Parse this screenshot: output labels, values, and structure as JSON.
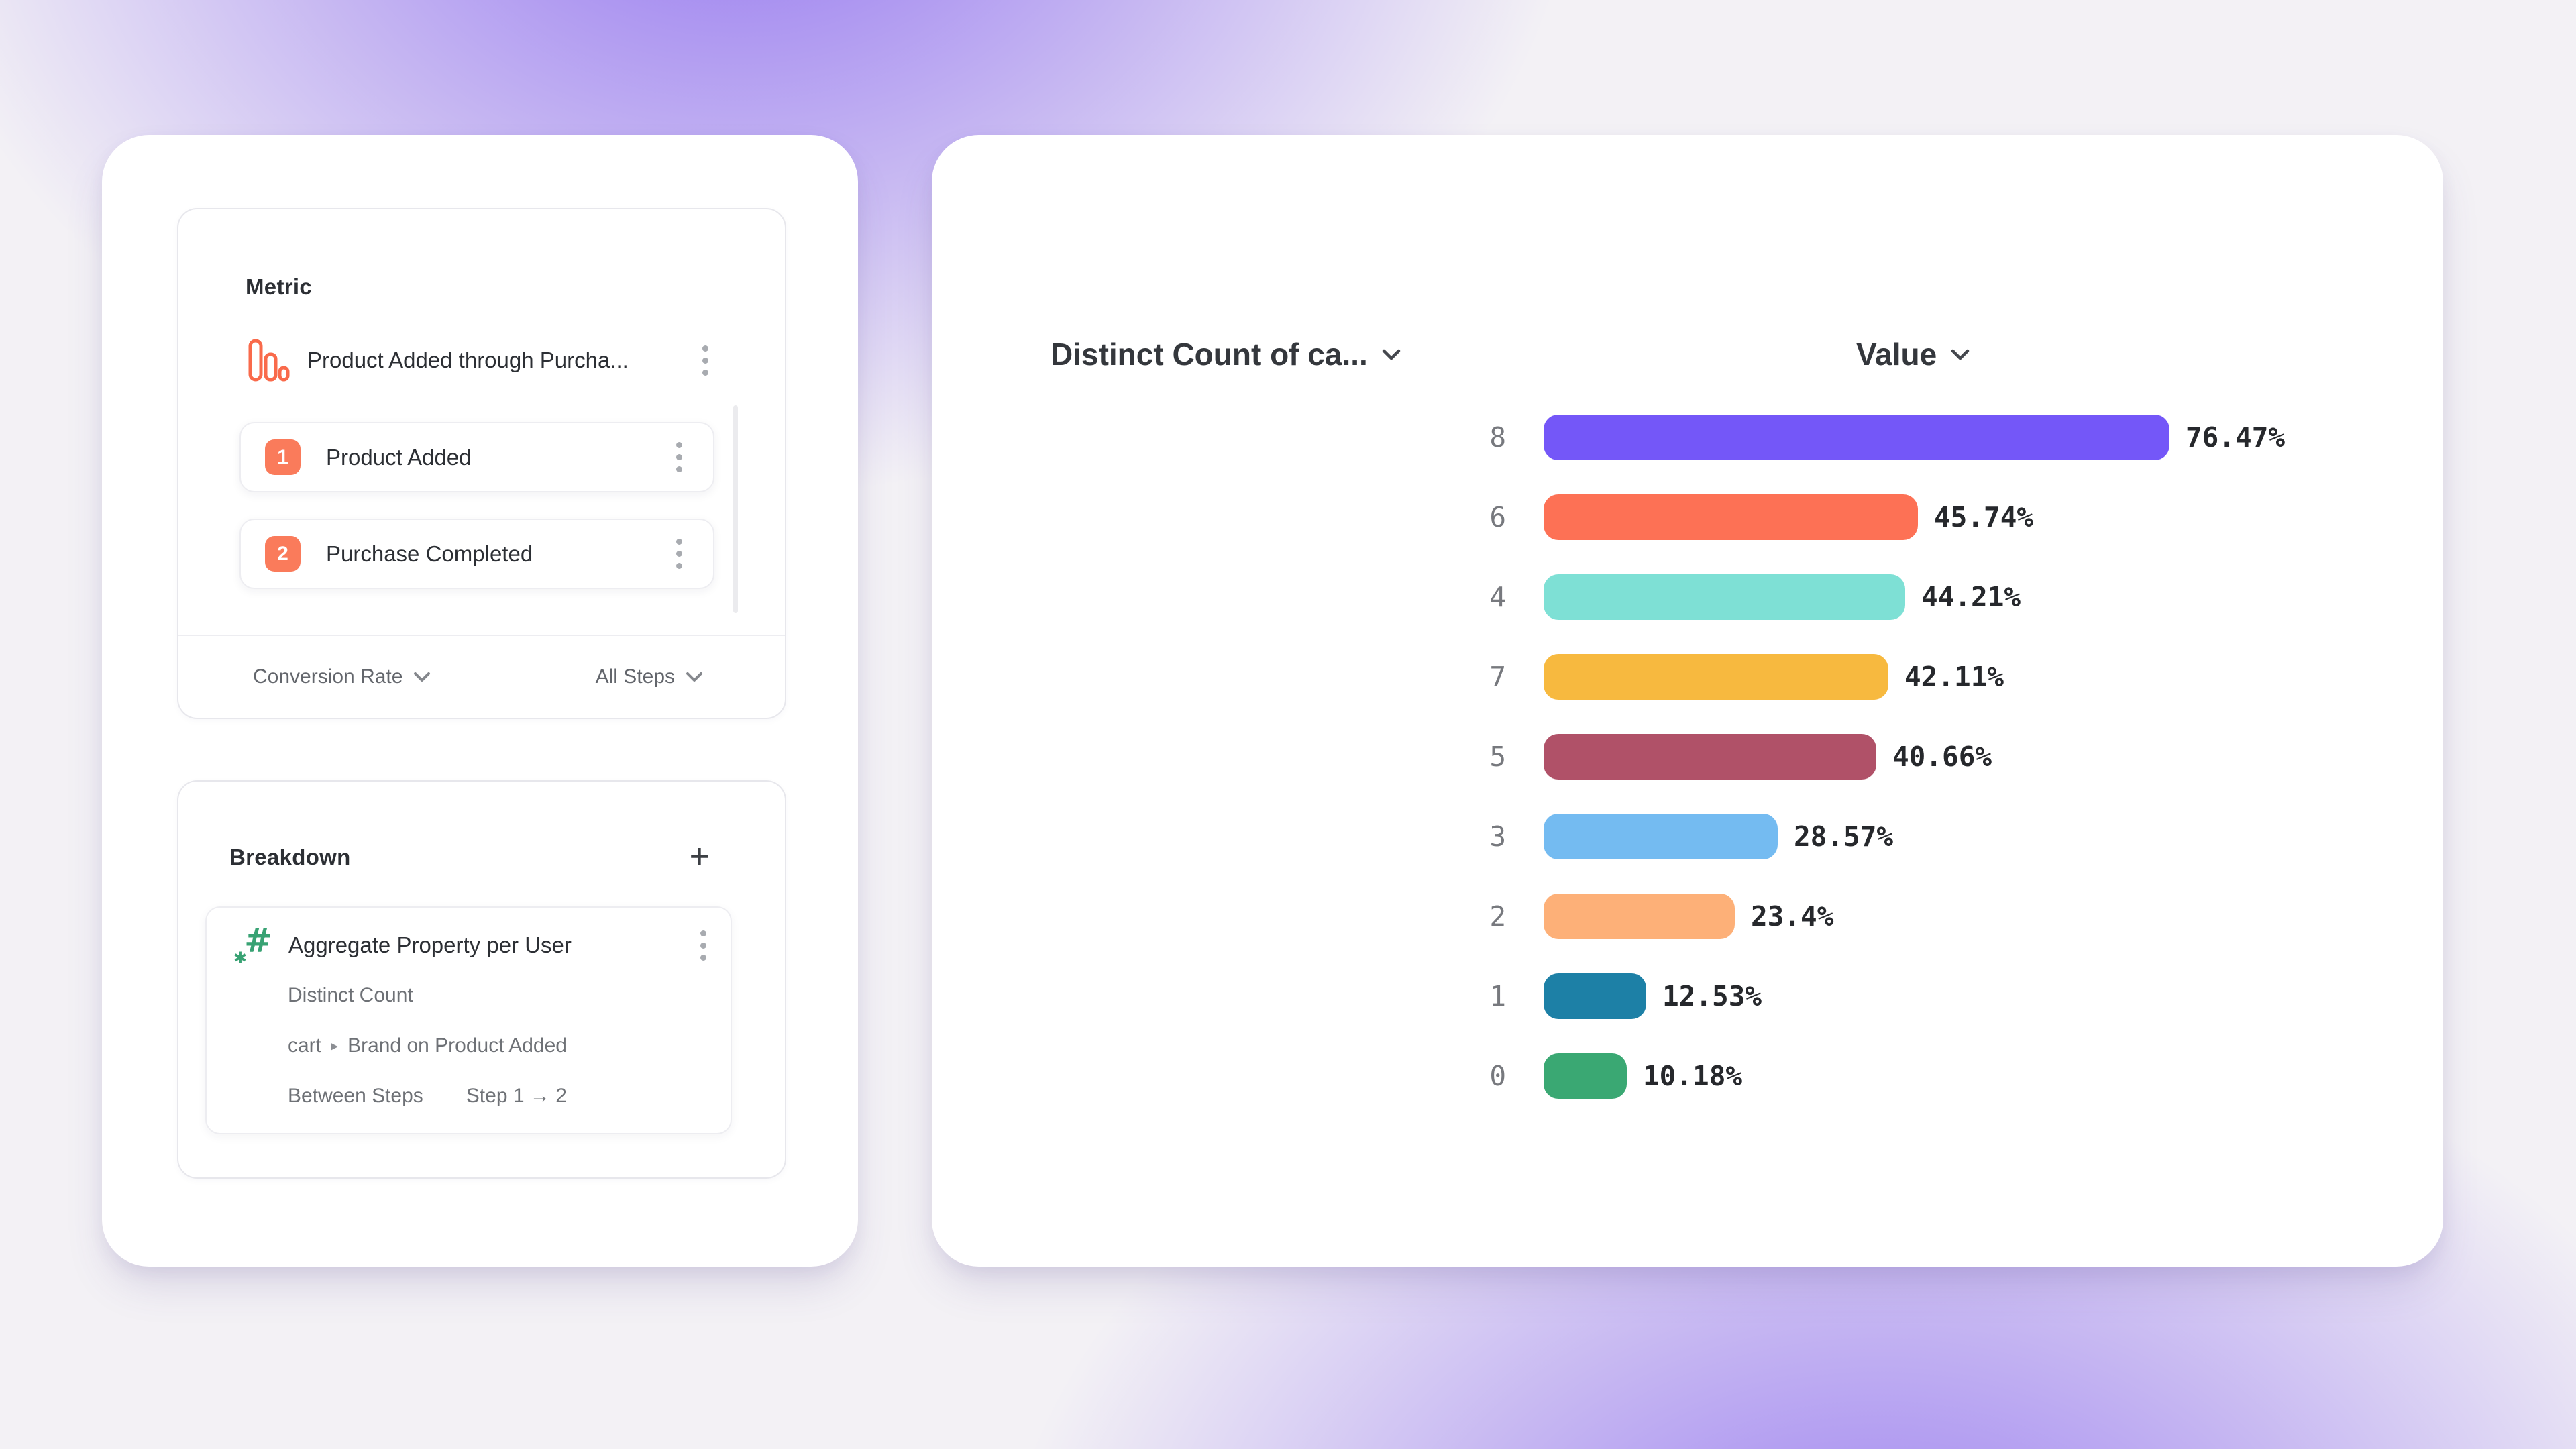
{
  "left_panel": {
    "metric": {
      "title": "Metric",
      "funnel_title": "Product Added through Purcha...",
      "steps": [
        {
          "number": "1",
          "label": "Product Added"
        },
        {
          "number": "2",
          "label": "Purchase Completed"
        }
      ],
      "footer_left": "Conversion Rate",
      "footer_right": "All Steps"
    },
    "breakdown": {
      "title": "Breakdown",
      "add_label": "+",
      "card_title": "Aggregate Property per User",
      "detail_measure": "Distinct Count",
      "property_event": "cart",
      "property_separator": "▸",
      "property_name": "Brand on Product Added",
      "between_steps_label": "Between Steps",
      "between_steps_value": "Step 1 → 2"
    }
  },
  "chart_data": {
    "type": "bar",
    "orientation": "horizontal",
    "title": "",
    "column_headers": {
      "category": "Distinct Count of ca...",
      "value": "Value"
    },
    "categories": [
      "8",
      "6",
      "4",
      "7",
      "5",
      "3",
      "2",
      "1",
      "0"
    ],
    "values": [
      76.47,
      45.74,
      44.21,
      42.11,
      40.66,
      28.57,
      23.4,
      12.53,
      10.18
    ],
    "value_labels": [
      "76.47%",
      "45.74%",
      "44.21%",
      "42.11%",
      "40.66%",
      "28.57%",
      "23.4%",
      "12.53%",
      "10.18%"
    ],
    "bar_colors": [
      "#7457f8",
      "#fd7155",
      "#7ee0d5",
      "#f7b93f",
      "#b05168",
      "#74bbf1",
      "#fdb078",
      "#1d80a6",
      "#3aa873"
    ],
    "xlim": [
      0,
      100
    ],
    "grid": false,
    "legend": false
  },
  "colors": {
    "accent_orange": "#fa7b5b",
    "icon_orange": "#f96a4b",
    "icon_green": "#38a273",
    "kebab_gray": "#a8abb0",
    "chevron_gray": "#85888d",
    "header_chevron": "#45484e",
    "value_text": "#26282c",
    "category_text": "#77797e",
    "background_glow": "#805cee"
  }
}
